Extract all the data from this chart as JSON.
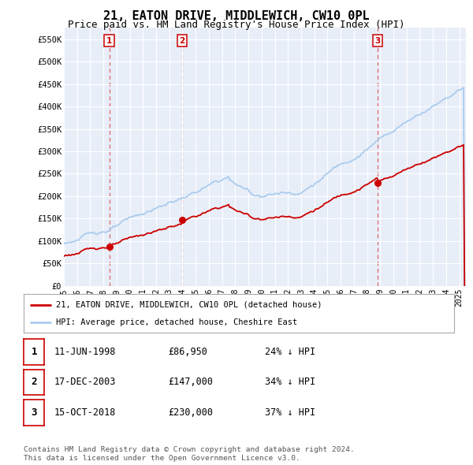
{
  "title": "21, EATON DRIVE, MIDDLEWICH, CW10 0PL",
  "subtitle": "Price paid vs. HM Land Registry's House Price Index (HPI)",
  "title_fontsize": 11,
  "subtitle_fontsize": 9,
  "ylabel_ticks": [
    "£0",
    "£50K",
    "£100K",
    "£150K",
    "£200K",
    "£250K",
    "£300K",
    "£350K",
    "£400K",
    "£450K",
    "£500K",
    "£550K"
  ],
  "ytick_values": [
    0,
    50000,
    100000,
    150000,
    200000,
    250000,
    300000,
    350000,
    400000,
    450000,
    500000,
    550000
  ],
  "ylim": [
    0,
    575000
  ],
  "xlim_start": 1995.0,
  "xlim_end": 2025.5,
  "sales": [
    {
      "date_num": 1998.44,
      "price": 86950,
      "label": "1"
    },
    {
      "date_num": 2003.96,
      "price": 147000,
      "label": "2"
    },
    {
      "date_num": 2018.79,
      "price": 230000,
      "label": "3"
    }
  ],
  "hpi_color": "#aaccee",
  "sale_line_color": "#cc0000",
  "vline_color": "#dd6666",
  "legend_entries": [
    "21, EATON DRIVE, MIDDLEWICH, CW10 0PL (detached house)",
    "HPI: Average price, detached house, Cheshire East"
  ],
  "table_rows": [
    {
      "num": "1",
      "date": "11-JUN-1998",
      "price": "£86,950",
      "hpi": "24% ↓ HPI"
    },
    {
      "num": "2",
      "date": "17-DEC-2003",
      "price": "£147,000",
      "hpi": "34% ↓ HPI"
    },
    {
      "num": "3",
      "date": "15-OCT-2018",
      "price": "£230,000",
      "hpi": "37% ↓ HPI"
    }
  ],
  "footnote": "Contains HM Land Registry data © Crown copyright and database right 2024.\nThis data is licensed under the Open Government Licence v3.0.",
  "background_color": "#ffffff",
  "plot_bg_color": "#e8eef8"
}
